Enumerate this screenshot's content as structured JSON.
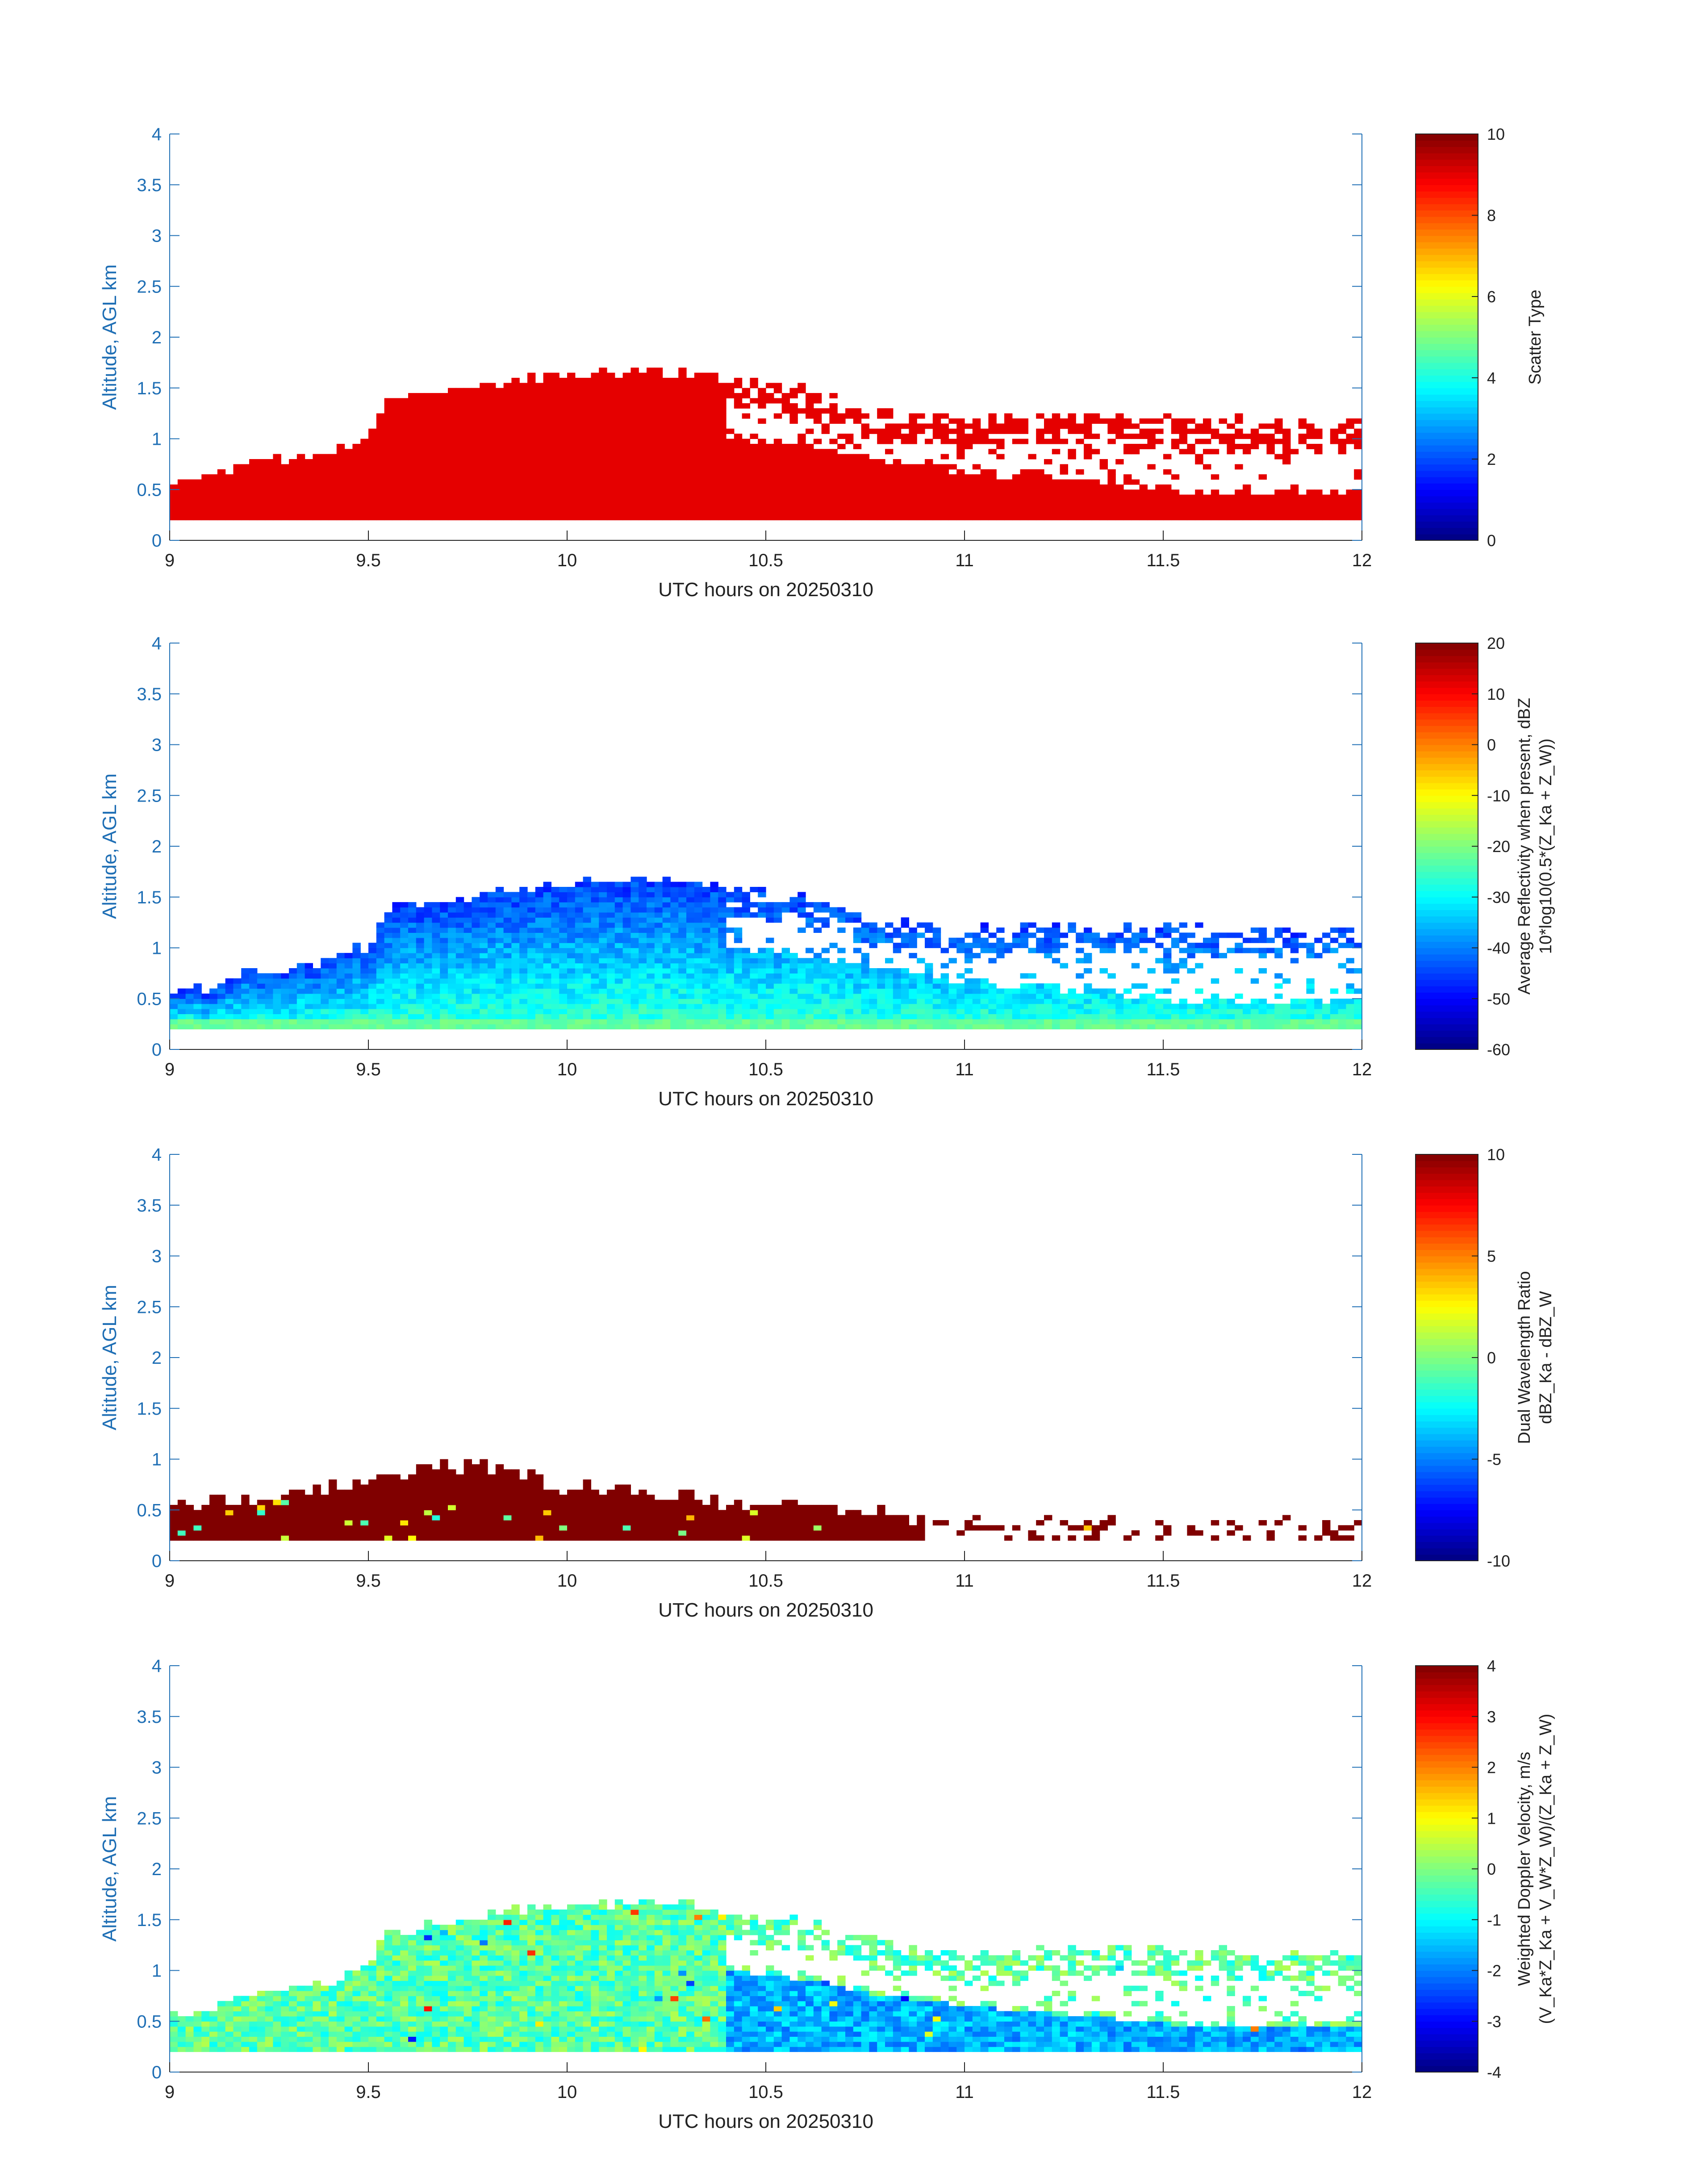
{
  "chart_data": [
    {
      "type": "heatmap",
      "ylabel": "Altitude, AGL km",
      "xlabel": "UTC hours on 20250310",
      "xlim": [
        9,
        12
      ],
      "ylim": [
        0,
        4
      ],
      "x_ticks": [
        "9",
        "9.5",
        "10",
        "10.5",
        "11",
        "11.5",
        "12"
      ],
      "y_ticks": [
        "0",
        "0.5",
        "1",
        "1.5",
        "2",
        "2.5",
        "3",
        "3.5",
        "4"
      ],
      "colorbar": {
        "label": "Scatter Type",
        "label2": "",
        "range": [
          0,
          10
        ],
        "ticks": [
          "0",
          "2",
          "4",
          "6",
          "8",
          "10"
        ]
      },
      "field": "scatter",
      "dominant_value": 9
    },
    {
      "type": "heatmap",
      "ylabel": "Altitude, AGL km",
      "xlabel": "UTC hours on 20250310",
      "xlim": [
        9,
        12
      ],
      "ylim": [
        0,
        4
      ],
      "x_ticks": [
        "9",
        "9.5",
        "10",
        "10.5",
        "11",
        "11.5",
        "12"
      ],
      "y_ticks": [
        "0",
        "0.5",
        "1",
        "1.5",
        "2",
        "2.5",
        "3",
        "3.5",
        "4"
      ],
      "colorbar": {
        "label": "Average Reflectivity when present, dBZ",
        "label2": "10*log10(0.5*(Z_Ka + Z_W))",
        "range": [
          -60,
          20
        ],
        "ticks": [
          "-60",
          "-50",
          "-40",
          "-30",
          "-20",
          "-10",
          "0",
          "10",
          "20"
        ]
      },
      "field": "reflectivity",
      "value_range_at_base": [
        -25,
        -30
      ],
      "value_range_at_top": [
        -45,
        -55
      ]
    },
    {
      "type": "heatmap",
      "ylabel": "Altitude, AGL km",
      "xlabel": "UTC hours on 20250310",
      "xlim": [
        9,
        12
      ],
      "ylim": [
        0,
        4
      ],
      "x_ticks": [
        "9",
        "9.5",
        "10",
        "10.5",
        "11",
        "11.5",
        "12"
      ],
      "y_ticks": [
        "0",
        "0.5",
        "1",
        "1.5",
        "2",
        "2.5",
        "3",
        "3.5",
        "4"
      ],
      "colorbar": {
        "label": "Dual Wavelength Ratio",
        "label2": "dBZ_Ka - dBZ_W",
        "range": [
          -10,
          10
        ],
        "ticks": [
          "-10",
          "-5",
          "0",
          "5",
          "10"
        ]
      },
      "field": "dwr",
      "dominant_value": 10
    },
    {
      "type": "heatmap",
      "ylabel": "Altitude, AGL km",
      "xlabel": "UTC hours on 20250310",
      "xlim": [
        9,
        12
      ],
      "ylim": [
        0,
        4
      ],
      "x_ticks": [
        "9",
        "9.5",
        "10",
        "10.5",
        "11",
        "11.5",
        "12"
      ],
      "y_ticks": [
        "0",
        "0.5",
        "1",
        "1.5",
        "2",
        "2.5",
        "3",
        "3.5",
        "4"
      ],
      "colorbar": {
        "label": "Weighted Doppler Velocity, m/s",
        "label2": "(V_Ka*Z_Ka + V_W*Z_W)/(Z_Ka + Z_W)",
        "range": [
          -4,
          4
        ],
        "ticks": [
          "-4",
          "-3",
          "-2",
          "-1",
          "0",
          "1",
          "2",
          "3",
          "4"
        ]
      },
      "field": "velocity",
      "value_range_lower_layer": [
        -2,
        -1
      ],
      "value_range_upper_layer": [
        -1,
        0.5
      ]
    }
  ],
  "data_extent": {
    "time_bin_hours": 0.02,
    "altitude_bin_km": 0.05,
    "base_altitude_km": 0.2,
    "cloud_top_km": [
      [
        9.0,
        0.55
      ],
      [
        9.1,
        0.6
      ],
      [
        9.2,
        0.75
      ],
      [
        9.3,
        0.78
      ],
      [
        9.4,
        0.85
      ],
      [
        9.5,
        1.0
      ],
      [
        9.55,
        1.35
      ],
      [
        9.7,
        1.45
      ],
      [
        9.85,
        1.55
      ],
      [
        10.0,
        1.6
      ],
      [
        10.2,
        1.65
      ],
      [
        10.35,
        1.6
      ],
      [
        10.45,
        1.55
      ],
      [
        10.6,
        1.5
      ],
      [
        10.7,
        1.35
      ],
      [
        10.8,
        1.25
      ],
      [
        10.9,
        1.25
      ],
      [
        11.0,
        1.15
      ],
      [
        11.2,
        1.2
      ],
      [
        11.5,
        1.2
      ],
      [
        11.75,
        1.15
      ],
      [
        12.0,
        1.15
      ]
    ],
    "lower_layer_top_km": [
      [
        10.4,
        1.0
      ],
      [
        10.6,
        0.9
      ],
      [
        10.8,
        0.75
      ],
      [
        11.0,
        0.65
      ],
      [
        11.3,
        0.55
      ],
      [
        11.6,
        0.45
      ],
      [
        12.0,
        0.45
      ]
    ],
    "dwr_top_km": [
      [
        9.0,
        0.5
      ],
      [
        9.2,
        0.6
      ],
      [
        9.5,
        0.75
      ],
      [
        9.65,
        0.9
      ],
      [
        9.8,
        0.9
      ],
      [
        10.0,
        0.7
      ],
      [
        10.2,
        0.65
      ],
      [
        10.4,
        0.55
      ],
      [
        10.6,
        0.5
      ],
      [
        10.8,
        0.45
      ],
      [
        10.9,
        0.4
      ],
      [
        11.2,
        0.35
      ],
      [
        12.0,
        0.35
      ]
    ]
  }
}
